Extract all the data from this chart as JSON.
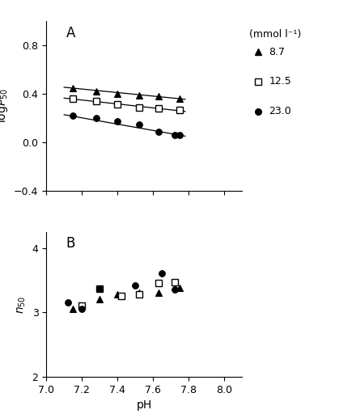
{
  "panel_A_label": "A",
  "panel_B_label": "B",
  "xlabel": "pH",
  "ylabel_A": "log$P_{50}$",
  "ylabel_B": "$n_{50}$",
  "legend_title": "(mmol l⁻¹)",
  "legend_entries": [
    "8.7",
    "12.5",
    "23.0"
  ],
  "xlim": [
    7.0,
    8.1
  ],
  "ylim_A": [
    -0.4,
    1.0
  ],
  "ylim_B": [
    2.0,
    4.25
  ],
  "yticks_A": [
    -0.4,
    0.0,
    0.4,
    0.8
  ],
  "yticks_B": [
    2,
    3,
    4
  ],
  "xticks": [
    7.0,
    7.2,
    7.4,
    7.6,
    7.8,
    8.0
  ],
  "tri_x_A": [
    7.15,
    7.28,
    7.4,
    7.52,
    7.63,
    7.75
  ],
  "tri_y_A": [
    0.445,
    0.415,
    0.4,
    0.385,
    0.375,
    0.355
  ],
  "tri_line_x": [
    7.1,
    7.78
  ],
  "tri_line_y": [
    0.451,
    0.352
  ],
  "sq_x_A": [
    7.15,
    7.28,
    7.4,
    7.52,
    7.63,
    7.75
  ],
  "sq_y_A": [
    0.355,
    0.335,
    0.31,
    0.285,
    0.275,
    0.265
  ],
  "sq_line_x": [
    7.1,
    7.78
  ],
  "sq_line_y": [
    0.362,
    0.252
  ],
  "ci_x_A": [
    7.15,
    7.28,
    7.4,
    7.52,
    7.63,
    7.72,
    7.75
  ],
  "ci_y_A": [
    0.215,
    0.195,
    0.17,
    0.145,
    0.085,
    0.06,
    0.055
  ],
  "ci_line_x": [
    7.1,
    7.78
  ],
  "ci_line_y": [
    0.225,
    0.048
  ],
  "tri_x_B": [
    7.15,
    7.3,
    7.4,
    7.52,
    7.63,
    7.75
  ],
  "tri_y_B": [
    3.05,
    3.2,
    3.28,
    3.3,
    3.3,
    3.38
  ],
  "sq_x_B": [
    7.2,
    7.3,
    7.42,
    7.52,
    7.63,
    7.72
  ],
  "sq_y_B": [
    3.1,
    3.37,
    3.25,
    3.28,
    3.45,
    3.47
  ],
  "ci_x_B": [
    7.12,
    7.2,
    7.3,
    7.5,
    7.65,
    7.72
  ],
  "ci_y_B": [
    3.16,
    3.05,
    3.37,
    3.42,
    3.6,
    3.35
  ],
  "background_color": "#ffffff",
  "line_color": "#000000",
  "marker_color": "#000000",
  "marker_size": 5.5,
  "line_width": 0.9,
  "font_size": 9,
  "label_font_size": 10
}
